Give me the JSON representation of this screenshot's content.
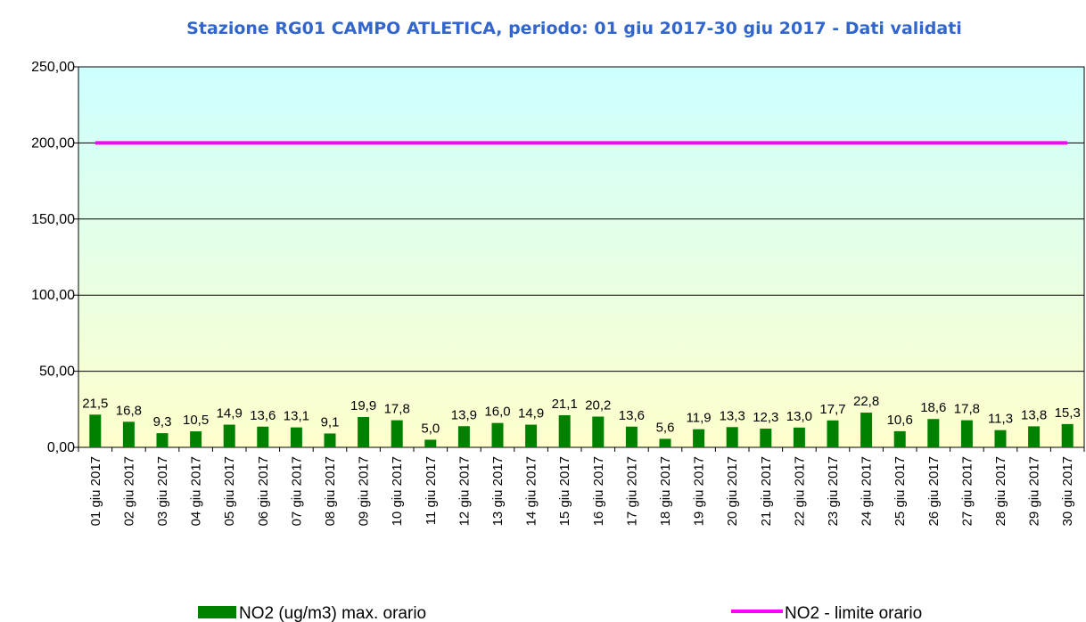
{
  "chart_data": {
    "type": "bar",
    "title": "Stazione RG01 CAMPO ATLETICA, periodo: 01 giu 2017-30 giu 2017 - Dati validati",
    "categories": [
      "01 giu 2017",
      "02 giu 2017",
      "03 giu 2017",
      "04 giu 2017",
      "05 giu 2017",
      "06 giu 2017",
      "07 giu 2017",
      "08 giu 2017",
      "09 giu 2017",
      "10 giu 2017",
      "11 giu 2017",
      "12 giu 2017",
      "13 giu 2017",
      "14 giu 2017",
      "15 giu 2017",
      "16 giu 2017",
      "17 giu 2017",
      "18 giu 2017",
      "19 giu 2017",
      "20 giu 2017",
      "21 giu 2017",
      "22 giu 2017",
      "23 giu 2017",
      "24 giu 2017",
      "25 giu 2017",
      "26 giu 2017",
      "27 giu 2017",
      "28 giu 2017",
      "29 giu 2017",
      "30 giu 2017"
    ],
    "series": [
      {
        "name": "NO2 (ug/m3) max. orario",
        "type": "bar",
        "color": "#008000",
        "values": [
          21.5,
          16.8,
          9.3,
          10.5,
          14.9,
          13.6,
          13.1,
          9.1,
          19.9,
          17.8,
          5.0,
          13.9,
          16.0,
          14.9,
          21.1,
          20.2,
          13.6,
          5.6,
          11.9,
          13.3,
          12.3,
          13.0,
          17.7,
          22.8,
          10.6,
          18.6,
          17.8,
          11.3,
          13.8,
          15.3
        ],
        "value_labels": [
          "21,5",
          "16,8",
          "9,3",
          "10,5",
          "14,9",
          "13,6",
          "13,1",
          "9,1",
          "19,9",
          "17,8",
          "5,0",
          "13,9",
          "16,0",
          "14,9",
          "21,1",
          "20,2",
          "13,6",
          "5,6",
          "11,9",
          "13,3",
          "12,3",
          "13,0",
          "17,7",
          "22,8",
          "10,6",
          "18,6",
          "17,8",
          "11,3",
          "13,8",
          "15,3"
        ]
      },
      {
        "name": "NO2 - limite orario",
        "type": "line",
        "color": "#ff00ff",
        "values": [
          200,
          200,
          200,
          200,
          200,
          200,
          200,
          200,
          200,
          200,
          200,
          200,
          200,
          200,
          200,
          200,
          200,
          200,
          200,
          200,
          200,
          200,
          200,
          200,
          200,
          200,
          200,
          200,
          200,
          200
        ]
      }
    ],
    "ylim": [
      0,
      250
    ],
    "yticks": [
      {
        "value": 0,
        "label": "0,00"
      },
      {
        "value": 50,
        "label": "50,00"
      },
      {
        "value": 100,
        "label": "100,00"
      },
      {
        "value": 150,
        "label": "150,00"
      },
      {
        "value": 200,
        "label": "200,00"
      },
      {
        "value": 250,
        "label": "250,00"
      }
    ],
    "grid": true
  }
}
